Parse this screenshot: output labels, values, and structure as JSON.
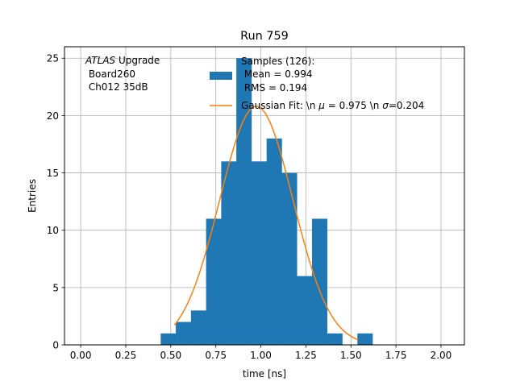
{
  "chart_data": {
    "type": "histogram",
    "title": "Run 759",
    "xlabel": "time [ns]",
    "ylabel": "Entries",
    "xlim": [
      -0.09,
      2.13
    ],
    "ylim": [
      0,
      26
    ],
    "xticks": [
      0.0,
      0.25,
      0.5,
      0.75,
      1.0,
      1.25,
      1.5,
      1.75,
      2.0
    ],
    "xtick_labels": [
      "0.00",
      "0.25",
      "0.50",
      "0.75",
      "1.00",
      "1.25",
      "1.50",
      "1.75",
      "2.00"
    ],
    "yticks": [
      0,
      5,
      10,
      15,
      20,
      25
    ],
    "ytick_labels": [
      "0",
      "5",
      "10",
      "15",
      "20",
      "25"
    ],
    "grid": true,
    "bin_edges": [
      0.444,
      0.528,
      0.612,
      0.696,
      0.78,
      0.864,
      0.948,
      1.032,
      1.116,
      1.2,
      1.284,
      1.368,
      1.452,
      1.536,
      1.62
    ],
    "bin_counts": [
      1,
      2,
      3,
      11,
      16,
      25,
      16,
      18,
      15,
      6,
      11,
      1,
      0,
      1
    ],
    "bar_color": "#1f77b4",
    "fit": {
      "mu": 0.975,
      "sigma": 0.204,
      "amplitude": 20.8,
      "x_range": [
        0.52,
        1.54
      ],
      "color": "#ff7f0e"
    },
    "legend": {
      "placement": "top-center",
      "samples_lines": [
        "Samples (126):",
        " Mean = 0.994",
        " RMS = 0.194"
      ],
      "fit_label_prefix": "Gaussian Fit: \\n ",
      "fit_mu_symbol": "μ",
      "fit_mu_text": " = 0.975 \\n ",
      "fit_sigma_symbol": "σ",
      "fit_sigma_text": "=0.204"
    },
    "annotation": {
      "atlas_italic": "ATLAS",
      "atlas_rest": " Upgrade",
      "line2": " Board260",
      "line3": " Ch012 35dB"
    }
  }
}
